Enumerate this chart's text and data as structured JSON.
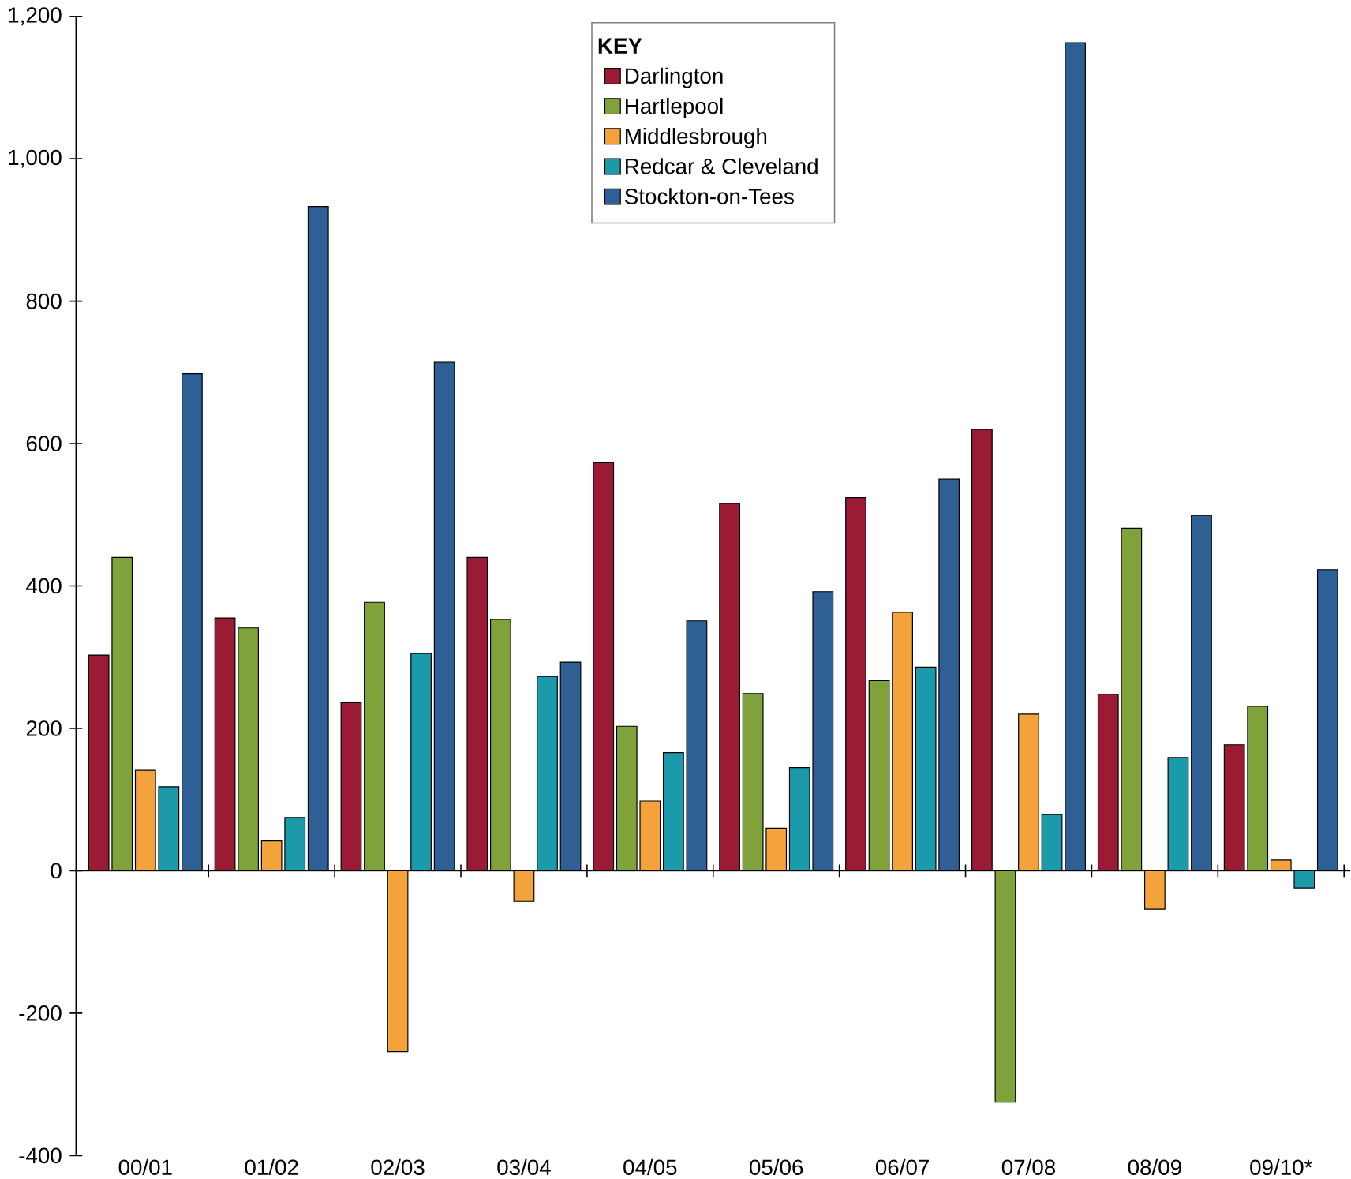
{
  "chart_data": {
    "type": "bar",
    "legend_title": "KEY",
    "legend": "top",
    "categories": [
      "00/01",
      "01/02",
      "02/03",
      "03/04",
      "04/05",
      "05/06",
      "06/07",
      "07/08",
      "08/09",
      "09/10*"
    ],
    "ylim": [
      -400,
      1200
    ],
    "yticks": [
      -400,
      -200,
      0,
      200,
      400,
      600,
      800,
      {
        "value": 1000,
        "label": "1,000"
      },
      {
        "value": 1200,
        "label": "1,200"
      }
    ],
    "series": [
      {
        "name": "Darlington",
        "color": "#9b1b35",
        "values": [
          303,
          355,
          236,
          440,
          573,
          516,
          524,
          620,
          248,
          177
        ]
      },
      {
        "name": "Hartlepool",
        "color": "#7fa33a",
        "values": [
          440,
          341,
          377,
          353,
          203,
          249,
          267,
          -325,
          481,
          231
        ]
      },
      {
        "name": "Middlesbrough",
        "color": "#f4a23c",
        "values": [
          141,
          42,
          -254,
          -43,
          98,
          60,
          363,
          220,
          -54,
          15
        ]
      },
      {
        "name": "Redcar & Cleveland",
        "color": "#1a9aab",
        "values": [
          118,
          75,
          305,
          273,
          166,
          145,
          286,
          79,
          159,
          -24
        ]
      },
      {
        "name": "Stockton-on-Tees",
        "color": "#2e5f95",
        "values": [
          698,
          933,
          714,
          293,
          351,
          392,
          550,
          1163,
          499,
          423
        ]
      }
    ]
  }
}
